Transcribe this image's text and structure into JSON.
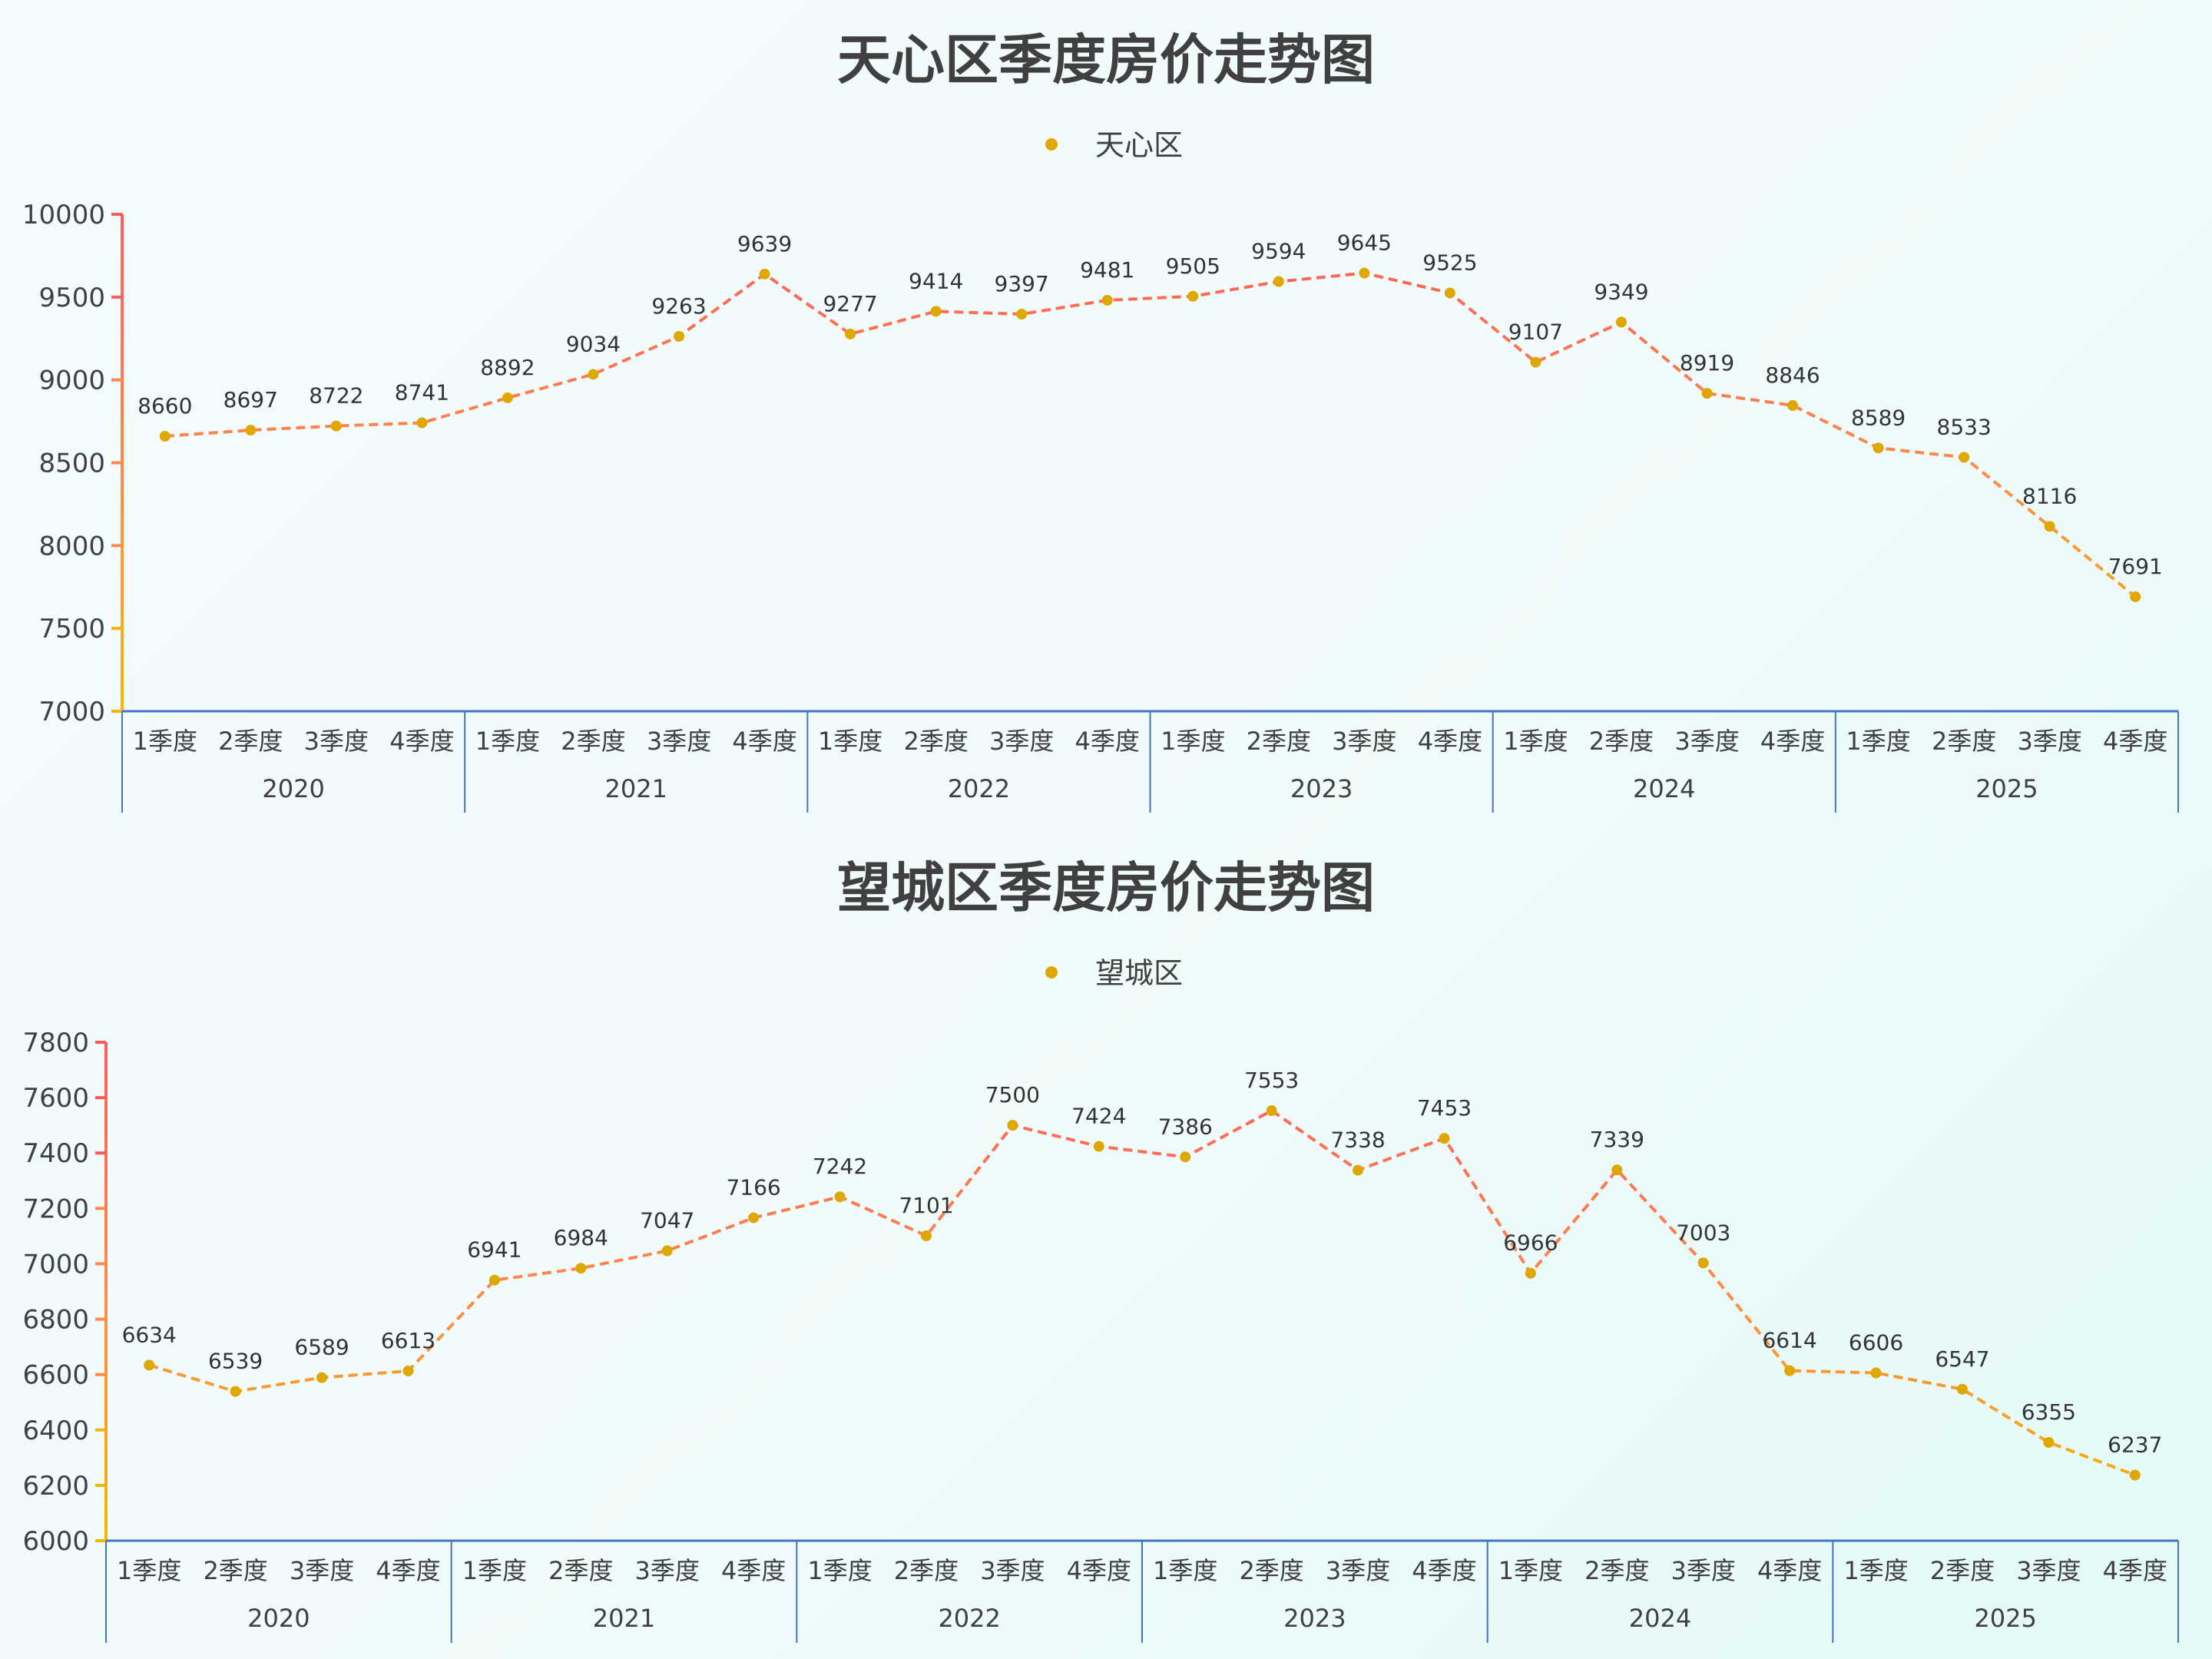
{
  "colors": {
    "line_top": "#ff5b5b",
    "line_mid": "#ff8a4a",
    "line_bottom": "#f7b500",
    "point": "#dea800",
    "xaxis": "#4472c4",
    "text": "#404040"
  },
  "chart_data": [
    {
      "type": "line",
      "title": "天心区季度房价走势图",
      "legend": [
        "天心区"
      ],
      "legend_position": "top-center",
      "xlabel": "",
      "ylabel": "",
      "ylim": [
        7000,
        10000
      ],
      "yticks": [
        7000,
        7500,
        8000,
        8500,
        9000,
        9500,
        10000
      ],
      "grid": false,
      "groups": [
        "2020",
        "2021",
        "2022",
        "2023",
        "2024",
        "2025"
      ],
      "quarters": [
        "1季度",
        "2季度",
        "3季度",
        "4季度"
      ],
      "categories": [
        "2020 1季度",
        "2020 2季度",
        "2020 3季度",
        "2020 4季度",
        "2021 1季度",
        "2021 2季度",
        "2021 3季度",
        "2021 4季度",
        "2022 1季度",
        "2022 2季度",
        "2022 3季度",
        "2022 4季度",
        "2023 1季度",
        "2023 2季度",
        "2023 3季度",
        "2023 4季度",
        "2024 1季度",
        "2024 2季度",
        "2024 3季度",
        "2024 4季度",
        "2025 1季度",
        "2025 2季度",
        "2025 3季度",
        "2025 4季度"
      ],
      "series": [
        {
          "name": "天心区",
          "values": [
            8660,
            8697,
            8722,
            8741,
            8892,
            9034,
            9263,
            9639,
            9277,
            9414,
            9397,
            9481,
            9505,
            9594,
            9645,
            9525,
            9107,
            9349,
            8919,
            8846,
            8589,
            8533,
            8116,
            7691
          ]
        }
      ]
    },
    {
      "type": "line",
      "title": "望城区季度房价走势图",
      "legend": [
        "望城区"
      ],
      "legend_position": "top-center",
      "xlabel": "",
      "ylabel": "",
      "ylim": [
        6000,
        7800
      ],
      "yticks": [
        6000,
        6200,
        6400,
        6600,
        6800,
        7000,
        7200,
        7400,
        7600,
        7800
      ],
      "grid": false,
      "groups": [
        "2020",
        "2021",
        "2022",
        "2023",
        "2024",
        "2025"
      ],
      "quarters": [
        "1季度",
        "2季度",
        "3季度",
        "4季度"
      ],
      "categories": [
        "2020 1季度",
        "2020 2季度",
        "2020 3季度",
        "2020 4季度",
        "2021 1季度",
        "2021 2季度",
        "2021 3季度",
        "2021 4季度",
        "2022 1季度",
        "2022 2季度",
        "2022 3季度",
        "2022 4季度",
        "2023 1季度",
        "2023 2季度",
        "2023 3季度",
        "2023 4季度",
        "2024 1季度",
        "2024 2季度",
        "2024 3季度",
        "2024 4季度",
        "2025 1季度",
        "2025 2季度",
        "2025 3季度",
        "2025 4季度"
      ],
      "series": [
        {
          "name": "望城区",
          "values": [
            6634,
            6539,
            6589,
            6613,
            6941,
            6984,
            7047,
            7166,
            7242,
            7101,
            7500,
            7424,
            7386,
            7553,
            7338,
            7453,
            6966,
            7339,
            7003,
            6614,
            6606,
            6547,
            6355,
            6237
          ]
        }
      ]
    }
  ]
}
